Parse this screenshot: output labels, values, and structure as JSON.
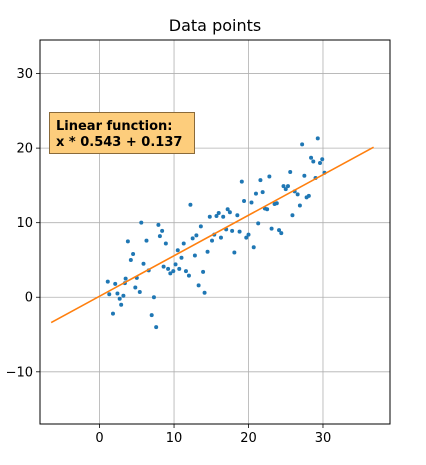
{
  "chart_data": {
    "type": "scatter",
    "title": "Data points",
    "xlabel": "",
    "ylabel": "",
    "xlim": [
      -8,
      39
    ],
    "ylim": [
      -17,
      34.5
    ],
    "xticks": [
      0,
      10,
      20,
      30
    ],
    "yticks": [
      -10,
      0,
      10,
      20,
      30
    ],
    "grid": true,
    "colors": {
      "points": "#1f77b4",
      "line": "#ff7f0e",
      "annotation_bg": "#fdcd7c"
    },
    "annotation": {
      "line1": "Linear function:",
      "line2": "x * 0.543 + 0.137"
    },
    "fit_line": {
      "slope": 0.543,
      "intercept": 0.137,
      "x_start": -6.5,
      "x_end": 36.8
    },
    "points": [
      [
        1.1,
        2.1
      ],
      [
        1.3,
        0.4
      ],
      [
        1.8,
        -2.2
      ],
      [
        2.1,
        1.8
      ],
      [
        2.4,
        0.5
      ],
      [
        2.7,
        -0.2
      ],
      [
        2.9,
        -1.0
      ],
      [
        3.2,
        0.2
      ],
      [
        3.4,
        1.9
      ],
      [
        3.5,
        2.5
      ],
      [
        3.8,
        7.5
      ],
      [
        4.2,
        5.0
      ],
      [
        4.5,
        5.8
      ],
      [
        4.8,
        1.3
      ],
      [
        5.0,
        2.6
      ],
      [
        5.4,
        0.7
      ],
      [
        5.6,
        10.0
      ],
      [
        5.9,
        4.5
      ],
      [
        6.3,
        7.6
      ],
      [
        6.6,
        3.6
      ],
      [
        7.0,
        -2.4
      ],
      [
        7.3,
        0.0
      ],
      [
        7.6,
        -4.0
      ],
      [
        7.9,
        9.7
      ],
      [
        8.1,
        8.2
      ],
      [
        8.4,
        8.9
      ],
      [
        8.6,
        4.1
      ],
      [
        8.9,
        7.2
      ],
      [
        9.2,
        3.8
      ],
      [
        9.5,
        3.2
      ],
      [
        9.9,
        3.5
      ],
      [
        10.2,
        4.4
      ],
      [
        10.5,
        6.3
      ],
      [
        10.7,
        3.8
      ],
      [
        11.0,
        5.3
      ],
      [
        11.3,
        7.2
      ],
      [
        11.6,
        3.5
      ],
      [
        12.0,
        2.9
      ],
      [
        12.2,
        12.4
      ],
      [
        12.5,
        7.9
      ],
      [
        12.8,
        5.6
      ],
      [
        13.0,
        8.3
      ],
      [
        13.3,
        1.6
      ],
      [
        13.6,
        9.5
      ],
      [
        13.9,
        3.4
      ],
      [
        14.1,
        0.6
      ],
      [
        14.5,
        6.1
      ],
      [
        14.8,
        10.8
      ],
      [
        15.1,
        7.6
      ],
      [
        15.4,
        8.4
      ],
      [
        15.7,
        10.9
      ],
      [
        16.0,
        11.3
      ],
      [
        16.3,
        8.0
      ],
      [
        16.6,
        10.8
      ],
      [
        17.0,
        9.1
      ],
      [
        17.2,
        11.8
      ],
      [
        17.5,
        11.4
      ],
      [
        17.8,
        8.9
      ],
      [
        18.1,
        6.0
      ],
      [
        18.5,
        11.0
      ],
      [
        18.8,
        8.8
      ],
      [
        19.1,
        15.5
      ],
      [
        19.4,
        12.9
      ],
      [
        19.7,
        8.0
      ],
      [
        20.0,
        8.4
      ],
      [
        20.4,
        12.7
      ],
      [
        20.7,
        6.7
      ],
      [
        21.0,
        13.9
      ],
      [
        21.3,
        9.9
      ],
      [
        21.6,
        15.7
      ],
      [
        21.9,
        14.1
      ],
      [
        22.2,
        11.9
      ],
      [
        22.5,
        11.8
      ],
      [
        22.8,
        16.2
      ],
      [
        23.1,
        9.2
      ],
      [
        23.5,
        12.5
      ],
      [
        23.8,
        12.6
      ],
      [
        24.1,
        9.0
      ],
      [
        24.4,
        8.6
      ],
      [
        24.7,
        14.9
      ],
      [
        25.0,
        14.5
      ],
      [
        25.3,
        14.9
      ],
      [
        25.6,
        16.8
      ],
      [
        25.9,
        11.0
      ],
      [
        26.2,
        14.2
      ],
      [
        26.6,
        13.8
      ],
      [
        26.9,
        12.3
      ],
      [
        27.2,
        20.5
      ],
      [
        27.5,
        16.3
      ],
      [
        27.8,
        13.4
      ],
      [
        28.1,
        13.6
      ],
      [
        28.4,
        18.7
      ],
      [
        28.7,
        18.2
      ],
      [
        29.0,
        16.0
      ],
      [
        29.3,
        21.3
      ],
      [
        29.6,
        18.0
      ],
      [
        29.9,
        18.5
      ],
      [
        30.2,
        16.7
      ]
    ]
  }
}
